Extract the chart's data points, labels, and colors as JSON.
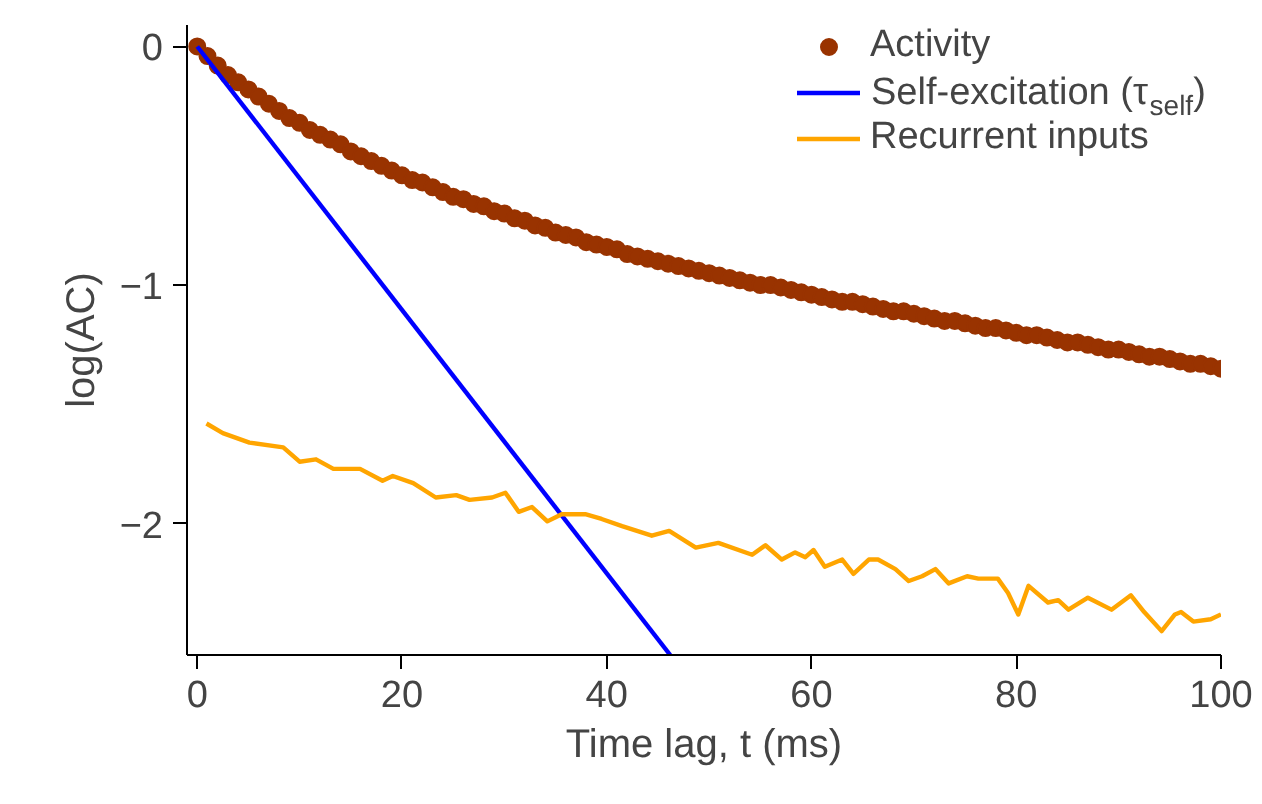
{
  "chart_data": {
    "type": "line",
    "xlabel": "Time lag, t (ms)",
    "ylabel": "log(AC)",
    "xlim": [
      -1,
      100
    ],
    "ylim": [
      -2.55,
      0.09
    ],
    "xticks": [
      0,
      20,
      40,
      60,
      80,
      100
    ],
    "yticks": [
      {
        "value": -2,
        "label": "−2"
      },
      {
        "value": -1,
        "label": "−1"
      },
      0
    ],
    "grid": false,
    "legend": "top right",
    "series": [
      {
        "name": "Activity",
        "type": "scatter",
        "marker": "circle",
        "color": "#993300",
        "x": [
          0,
          1,
          2,
          3,
          4,
          5,
          6,
          7,
          8,
          9,
          10,
          11,
          12,
          13,
          14,
          15,
          16,
          17,
          18,
          19,
          20,
          21,
          22,
          23,
          24,
          25,
          26,
          27,
          28,
          29,
          30,
          31,
          32,
          33,
          34,
          35,
          36,
          37,
          38,
          39,
          40,
          41,
          42,
          43,
          44,
          45,
          46,
          47,
          48,
          49,
          50,
          51,
          52,
          53,
          54,
          55,
          56,
          57,
          58,
          59,
          60,
          61,
          62,
          63,
          64,
          65,
          66,
          67,
          68,
          69,
          70,
          71,
          72,
          73,
          74,
          75,
          76,
          77,
          78,
          79,
          80,
          81,
          82,
          83,
          84,
          85,
          86,
          87,
          88,
          89,
          90,
          91,
          92,
          93,
          94,
          95,
          96,
          97,
          98,
          99,
          100
        ],
        "values": [
          0,
          -0.04,
          -0.08,
          -0.12,
          -0.15,
          -0.18,
          -0.21,
          -0.24,
          -0.27,
          -0.3,
          -0.32,
          -0.35,
          -0.37,
          -0.39,
          -0.41,
          -0.44,
          -0.46,
          -0.48,
          -0.5,
          -0.52,
          -0.54,
          -0.56,
          -0.57,
          -0.59,
          -0.61,
          -0.63,
          -0.64,
          -0.66,
          -0.67,
          -0.69,
          -0.7,
          -0.72,
          -0.73,
          -0.75,
          -0.76,
          -0.78,
          -0.79,
          -0.8,
          -0.82,
          -0.83,
          -0.84,
          -0.85,
          -0.87,
          -0.88,
          -0.89,
          -0.9,
          -0.91,
          -0.92,
          -0.93,
          -0.94,
          -0.95,
          -0.96,
          -0.97,
          -0.98,
          -0.99,
          -1.0,
          -1.0,
          -1.01,
          -1.02,
          -1.03,
          -1.04,
          -1.05,
          -1.06,
          -1.07,
          -1.07,
          -1.08,
          -1.09,
          -1.1,
          -1.11,
          -1.11,
          -1.12,
          -1.13,
          -1.14,
          -1.15,
          -1.15,
          -1.16,
          -1.17,
          -1.18,
          -1.18,
          -1.19,
          -1.2,
          -1.21,
          -1.21,
          -1.22,
          -1.23,
          -1.24,
          -1.24,
          -1.25,
          -1.26,
          -1.27,
          -1.27,
          -1.28,
          -1.29,
          -1.3,
          -1.3,
          -1.31,
          -1.32,
          -1.33,
          -1.33,
          -1.34,
          -1.35
        ]
      },
      {
        "name": "Self-excitation (τ$_{self}$)",
        "color": "#0000ff",
        "x": [
          0,
          46.2
        ],
        "values": [
          0,
          -2.55
        ]
      },
      {
        "name": "Recurrent inputs",
        "color": "#ffa500",
        "x": [
          0.9,
          2.5,
          5.1,
          8.4,
          10,
          11.6,
          13.3,
          15.9,
          18.1,
          19.1,
          21.1,
          23.3,
          25.3,
          26.6,
          28.8,
          30.1,
          31.4,
          32.7,
          34.2,
          35.6,
          37.9,
          39.5,
          41.5,
          44.4,
          46.1,
          48.7,
          50.9,
          54.2,
          55.5,
          57.1,
          58.4,
          59.4,
          60.2,
          61.3,
          63,
          64.1,
          65.6,
          66.5,
          68.2,
          69.5,
          70.8,
          72.1,
          73.4,
          75.2,
          76.3,
          78.2,
          79.2,
          80.2,
          81.2,
          83.1,
          84.1,
          85.1,
          87,
          89.3,
          91.2,
          92.5,
          94.2,
          95.5,
          96.1,
          97.3,
          99,
          100
        ],
        "values": [
          -1.58,
          -1.62,
          -1.66,
          -1.68,
          -1.74,
          -1.73,
          -1.77,
          -1.77,
          -1.82,
          -1.8,
          -1.83,
          -1.89,
          -1.88,
          -1.9,
          -1.89,
          -1.87,
          -1.95,
          -1.93,
          -1.99,
          -1.96,
          -1.96,
          -1.98,
          -2.01,
          -2.05,
          -2.03,
          -2.1,
          -2.08,
          -2.13,
          -2.09,
          -2.15,
          -2.12,
          -2.14,
          -2.11,
          -2.18,
          -2.15,
          -2.21,
          -2.15,
          -2.15,
          -2.19,
          -2.24,
          -2.22,
          -2.19,
          -2.25,
          -2.22,
          -2.23,
          -2.23,
          -2.29,
          -2.38,
          -2.26,
          -2.33,
          -2.32,
          -2.36,
          -2.31,
          -2.36,
          -2.3,
          -2.37,
          -2.45,
          -2.38,
          -2.37,
          -2.41,
          -2.4,
          -2.38
        ]
      }
    ]
  }
}
